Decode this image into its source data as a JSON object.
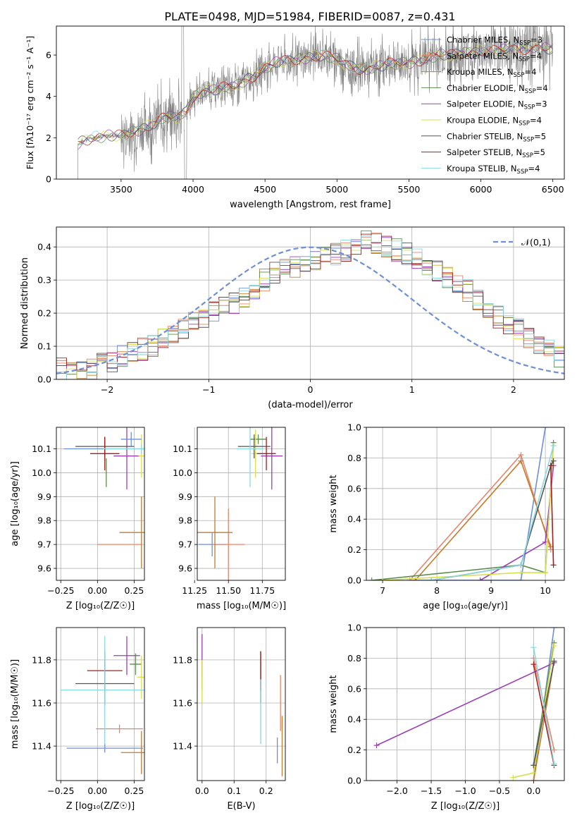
{
  "figure": {
    "title": "PLATE=0498, MJD=51984, FIBERID=0087, z=0.431"
  },
  "legend_colors": [
    "#6d8fd8",
    "#e8846a",
    "#c47b2a",
    "#5b8c4e",
    "#9b3fb5",
    "#d6e04d",
    "#555555",
    "#a81c1c",
    "#8ad8e0"
  ],
  "chart_data": [
    {
      "id": "spectrum",
      "type": "line",
      "xlabel": "wavelength [Angstrom, rest frame]",
      "ylabel": "Flux [f$_\\lambda$10$^{-17}$ erg cm$^{-2}$ s$^{-1}$ A$^{-1}$]",
      "ylabel_display": "Flux [fλ10⁻¹⁷ erg cm⁻² s⁻¹ A⁻¹]",
      "xlim": [
        3050,
        6580
      ],
      "ylim": [
        0,
        7.4
      ],
      "xticks": [
        3500,
        4000,
        4500,
        5000,
        5500,
        6000,
        6500
      ],
      "yticks": [
        0,
        2,
        4,
        6
      ],
      "grid": false,
      "legend_position": "top-right",
      "legend": [
        {
          "label": "Chabrier MILES, N",
          "sub": "SSP",
          "tail": "=3"
        },
        {
          "label": "Salpeter MILES, N",
          "sub": "SSP",
          "tail": "=4"
        },
        {
          "label": "Kroupa MILES, N",
          "sub": "SSP",
          "tail": "=4"
        },
        {
          "label": "Chabrier ELODIE, N",
          "sub": "SSP",
          "tail": "=4"
        },
        {
          "label": "Salpeter ELODIE, N",
          "sub": "SSP",
          "tail": "=3"
        },
        {
          "label": "Kroupa ELODIE, N",
          "sub": "SSP",
          "tail": "=4"
        },
        {
          "label": "Chabrier STELIB, N",
          "sub": "SSP",
          "tail": "=5"
        },
        {
          "label": "Salpeter STELIB, N",
          "sub": "SSP",
          "tail": "=5"
        },
        {
          "label": "Kroupa STELIB, N",
          "sub": "SSP",
          "tail": "=4"
        }
      ],
      "model_continuum": {
        "x": [
          3200,
          3250,
          3300,
          3400,
          3500,
          3600,
          3700,
          3800,
          3900,
          3950,
          4000,
          4100,
          4200,
          4300,
          4400,
          4500,
          4600,
          4700,
          4800,
          4900,
          5000,
          5100,
          5200,
          5300,
          5400,
          5500,
          5600,
          5700,
          5800,
          5900,
          6000,
          6100,
          6200,
          6300,
          6400,
          6500
        ],
        "y": [
          1.7,
          1.9,
          2.0,
          2.1,
          2.1,
          2.3,
          2.6,
          3.0,
          3.0,
          3.2,
          4.0,
          4.3,
          4.4,
          4.5,
          4.9,
          5.4,
          5.7,
          5.7,
          5.9,
          6.0,
          5.8,
          5.4,
          5.3,
          5.5,
          5.6,
          5.6,
          5.8,
          6.0,
          6.0,
          6.1,
          6.2,
          6.2,
          6.3,
          6.3,
          6.4,
          6.3
        ]
      },
      "observed_start": 3200,
      "observed_end": 6500
    },
    {
      "id": "residuals",
      "type": "histogram",
      "xlabel": "(data-model)/error",
      "ylabel": "Normed distribution",
      "xlim": [
        -2.5,
        2.5
      ],
      "ylim": [
        0,
        0.46
      ],
      "xticks": [
        -2,
        -1,
        0,
        1,
        2
      ],
      "yticks": [
        0.0,
        0.1,
        0.2,
        0.3,
        0.4
      ],
      "grid": true,
      "legend_position": "top-right",
      "legend": [
        {
          "label": "𝒩(0,1)"
        }
      ],
      "bin_width": 0.1,
      "bins_start": -2.5,
      "histograms": [
        {
          "values": [
            0.03,
            0.02,
            0.02,
            0.03,
            0.05,
            0.05,
            0.07,
            0.08,
            0.09,
            0.1,
            0.12,
            0.13,
            0.15,
            0.17,
            0.19,
            0.21,
            0.22,
            0.23,
            0.25,
            0.27,
            0.3,
            0.32,
            0.33,
            0.34,
            0.35,
            0.36,
            0.37,
            0.38,
            0.39,
            0.4,
            0.42,
            0.41,
            0.4,
            0.39,
            0.38,
            0.37,
            0.35,
            0.33,
            0.31,
            0.29,
            0.27,
            0.24,
            0.22,
            0.19,
            0.17,
            0.15,
            0.13,
            0.11,
            0.09,
            0.07
          ]
        },
        {
          "values": [
            0.02,
            0.03,
            0.03,
            0.04,
            0.04,
            0.06,
            0.06,
            0.07,
            0.08,
            0.11,
            0.12,
            0.14,
            0.16,
            0.18,
            0.2,
            0.22,
            0.23,
            0.24,
            0.27,
            0.3,
            0.29,
            0.31,
            0.33,
            0.35,
            0.33,
            0.38,
            0.36,
            0.37,
            0.41,
            0.38,
            0.39,
            0.42,
            0.37,
            0.36,
            0.35,
            0.4,
            0.34,
            0.31,
            0.3,
            0.28,
            0.25,
            0.23,
            0.2,
            0.18,
            0.16,
            0.14,
            0.12,
            0.1,
            0.08,
            0.06
          ]
        }
      ],
      "gaussian": {
        "mean": 0,
        "sigma": 1
      }
    },
    {
      "id": "age_vs_Z",
      "type": "scatter",
      "xlabel": "Z [log$_{10}$(Z/Z$_\\odot$)]",
      "xlabel_display": "Z [log₁₀(Z/Z☉)]",
      "ylabel_display": "age  [log₁₀(age/yr)]",
      "xlim": [
        -0.28,
        0.32
      ],
      "ylim": [
        9.55,
        10.19
      ],
      "xticks": [
        -0.25,
        0.0,
        0.25
      ],
      "yticks": [
        9.6,
        9.7,
        9.8,
        9.9,
        10.0,
        10.1
      ],
      "grid": true,
      "points": [
        {
          "x": 0.05,
          "y": 10.1,
          "xerr": 0.28,
          "yerr": 0.05
        },
        {
          "x": 0.15,
          "y": 9.7,
          "xerr": 0.16,
          "yerr": 0.0
        },
        {
          "x": 0.3,
          "y": 9.75,
          "xerr": 0.15,
          "yerr": 0.15
        },
        {
          "x": 0.26,
          "y": 10.14,
          "xerr": 0.06,
          "yerr": 0.02
        },
        {
          "x": 0.2,
          "y": 10.07,
          "xerr": 0.09,
          "yerr": 0.14
        },
        {
          "x": 0.3,
          "y": 10.08,
          "xerr": 0.03,
          "yerr": 0.1
        },
        {
          "x": 0.05,
          "y": 10.11,
          "xerr": 0.2,
          "yerr": 0.05
        },
        {
          "x": 0.05,
          "y": 10.08,
          "xerr": 0.1,
          "yerr": 0.07
        },
        {
          "x": 0.05,
          "y": 10.1,
          "xerr": 0.26,
          "yerr": 0.16
        }
      ]
    },
    {
      "id": "age_vs_mass",
      "type": "scatter",
      "xlabel_display": "mass [log₁₀(M/M☉)]",
      "xlim": [
        11.27,
        11.92
      ],
      "ylim": [
        9.55,
        10.19
      ],
      "xticks": [
        11.25,
        11.5,
        11.75
      ],
      "yticks": [
        9.6,
        9.7,
        9.8,
        9.9,
        10.0,
        10.1
      ],
      "grid": true
    },
    {
      "id": "weight_vs_age",
      "type": "line",
      "xlabel_display": "age  [log₁₀(age/yr)]",
      "ylabel": "mass weight",
      "xlim": [
        6.7,
        10.35
      ],
      "ylim": [
        0,
        1.0
      ],
      "xticks": [
        7,
        8,
        9,
        10
      ],
      "yticks": [
        0.0,
        0.2,
        0.4,
        0.6,
        0.8,
        1.0
      ],
      "grid": true,
      "series": [
        {
          "x": [
            7.5,
            9.55,
            10.0
          ],
          "y": [
            0.0,
            0.0,
            1.0
          ]
        },
        {
          "x": [
            7.5,
            9.55,
            10.1
          ],
          "y": [
            0.0,
            0.82,
            0.2
          ]
        },
        {
          "x": [
            7.6,
            9.55,
            10.1
          ],
          "y": [
            0.0,
            0.78,
            0.22
          ]
        },
        {
          "x": [
            6.8,
            9.55,
            10.0,
            10.15
          ],
          "y": [
            0.0,
            0.1,
            0.05,
            0.9
          ]
        },
        {
          "x": [
            8.8,
            10.0,
            10.15
          ],
          "y": [
            0.0,
            0.25,
            0.75
          ]
        },
        {
          "x": [
            7.0,
            9.55,
            10.0,
            10.15
          ],
          "y": [
            0.0,
            0.05,
            0.05,
            0.88
          ]
        },
        {
          "x": [
            7.9,
            9.55,
            10.1,
            10.15
          ],
          "y": [
            0.0,
            0.1,
            0.75,
            0.78
          ]
        },
        {
          "x": [
            10.1,
            10.15
          ],
          "y": [
            0.75,
            0.1
          ]
        },
        {
          "x": [
            7.9,
            9.55,
            10.15
          ],
          "y": [
            0.0,
            0.1,
            0.88
          ]
        }
      ]
    },
    {
      "id": "mass_vs_Z",
      "type": "scatter",
      "xlabel_display": "Z [log₁₀(Z/Z☉)]",
      "ylabel_display": "mass [log₁₀(M/M☉)]",
      "xlim": [
        -0.28,
        0.32
      ],
      "ylim": [
        11.24,
        11.95
      ],
      "xticks": [
        -0.25,
        0.0,
        0.25
      ],
      "yticks": [
        11.4,
        11.6,
        11.8
      ],
      "grid": true
    },
    {
      "id": "mass_vs_ebv",
      "type": "scatter",
      "xlabel": "E(B-V)",
      "xlim": [
        -0.015,
        0.26
      ],
      "ylim": [
        11.24,
        11.95
      ],
      "xticks": [
        0.0,
        0.1,
        0.2
      ],
      "yticks": [
        11.4,
        11.6,
        11.8
      ],
      "grid": true
    },
    {
      "id": "weight_vs_Z",
      "type": "line",
      "xlabel_display": "Z [log₁₀(Z/Z☉)]",
      "ylabel": "mass weight",
      "xlim": [
        -2.45,
        0.45
      ],
      "ylim": [
        0,
        1.0
      ],
      "xticks": [
        -2.0,
        -1.5,
        -1.0,
        -0.5,
        0.0
      ],
      "yticks": [
        0.0,
        0.2,
        0.4,
        0.6,
        0.8,
        1.0
      ],
      "grid": true
    }
  ]
}
